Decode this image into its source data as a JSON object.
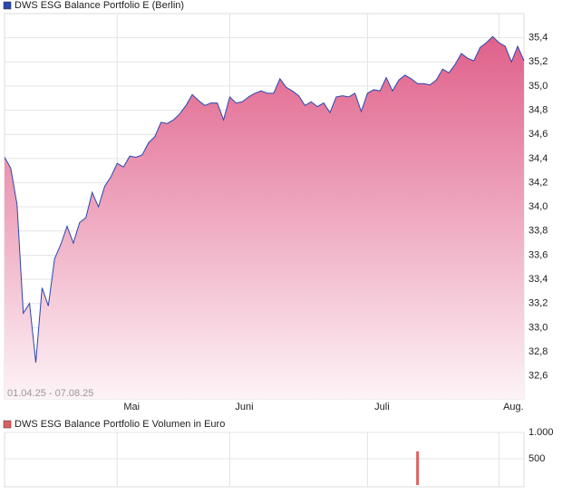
{
  "chart_data": [
    {
      "type": "area",
      "subtitle": "01.04.25 - 07.08.25",
      "series": [
        {
          "name": "DWS ESG Balance Portfolio E (Berlin)",
          "color": "#2a46b0",
          "fill": "#e0608a",
          "values": [
            34.41,
            34.32,
            34.02,
            33.12,
            33.2,
            32.71,
            33.33,
            33.18,
            33.57,
            33.69,
            33.84,
            33.7,
            33.87,
            33.91,
            34.12,
            34.0,
            34.17,
            34.25,
            34.36,
            34.33,
            34.42,
            34.41,
            34.43,
            34.53,
            34.58,
            34.7,
            34.69,
            34.72,
            34.77,
            34.84,
            34.93,
            34.88,
            34.84,
            34.86,
            34.86,
            34.72,
            34.91,
            34.86,
            34.87,
            34.91,
            34.94,
            34.96,
            34.94,
            34.94,
            35.06,
            34.99,
            34.96,
            34.92,
            34.84,
            34.87,
            34.83,
            34.86,
            34.78,
            34.91,
            34.92,
            34.91,
            34.94,
            34.79,
            34.94,
            34.97,
            34.96,
            35.07,
            34.96,
            35.05,
            35.09,
            35.06,
            35.02,
            35.02,
            35.01,
            35.05,
            35.14,
            35.11,
            35.18,
            35.27,
            35.23,
            35.21,
            35.32,
            35.36,
            35.41,
            35.36,
            35.33,
            35.2,
            35.33,
            35.21
          ]
        }
      ],
      "xlim": [
        0,
        83
      ],
      "xticks": [
        {
          "value": 18,
          "label": "Mai"
        },
        {
          "value": 36,
          "label": "Juni"
        },
        {
          "value": 58,
          "label": "Juli"
        },
        {
          "value": 79,
          "label": "Aug."
        }
      ],
      "ylim": [
        32.41,
        35.6
      ],
      "yticks": [
        {
          "value": 32.6,
          "label": "32,6"
        },
        {
          "value": 32.8,
          "label": "32,8"
        },
        {
          "value": 33.0,
          "label": "33,0"
        },
        {
          "value": 33.2,
          "label": "33,2"
        },
        {
          "value": 33.4,
          "label": "33,4"
        },
        {
          "value": 33.6,
          "label": "33,6"
        },
        {
          "value": 33.8,
          "label": "33,8"
        },
        {
          "value": 34.0,
          "label": "34,0"
        },
        {
          "value": 34.2,
          "label": "34,2"
        },
        {
          "value": 34.4,
          "label": "34,4"
        },
        {
          "value": 34.6,
          "label": "34,6"
        },
        {
          "value": 34.8,
          "label": "34,8"
        },
        {
          "value": 35.0,
          "label": "35,0"
        },
        {
          "value": 35.2,
          "label": "35,2"
        },
        {
          "value": 35.4,
          "label": "35,4"
        }
      ],
      "grid": true
    },
    {
      "type": "bar",
      "series": [
        {
          "name": "DWS ESG Balance Portfolio E Volumen in Euro",
          "color": "#e06060",
          "x": [
            66
          ],
          "values": [
            640
          ]
        }
      ],
      "xlim": [
        0,
        83
      ],
      "ylim": [
        0,
        1000
      ],
      "yticks": [
        {
          "value": 1000,
          "label": "1.000"
        },
        500
      ],
      "grid": true
    }
  ]
}
